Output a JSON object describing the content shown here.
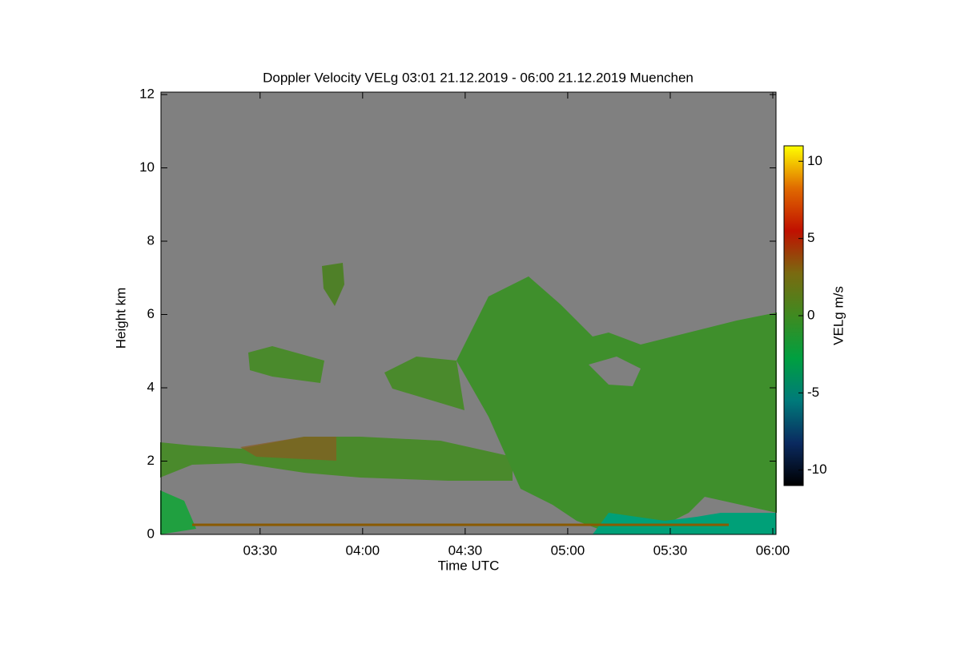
{
  "chart_data": {
    "type": "heatmap",
    "title": "Doppler Velocity VELg   03:01 21.12.2019 - 06:00 21.12.2019 Muenchen",
    "xlabel": "Time UTC",
    "ylabel": "Height km",
    "xlim": [
      3.0167,
      6
    ],
    "xticks": [
      {
        "value": 3.5,
        "label": "03:30"
      },
      {
        "value": 4,
        "label": "04:00"
      },
      {
        "value": 4.5,
        "label": "04:30"
      },
      {
        "value": 5,
        "label": "05:00"
      },
      {
        "value": 5.5,
        "label": "05:30"
      },
      {
        "value": 6,
        "label": "06:00"
      }
    ],
    "ylim": [
      0,
      12
    ],
    "yticks": [
      0,
      2,
      4,
      6,
      8,
      10,
      12
    ],
    "colorbar": {
      "label": "VELg m/s",
      "lim": [
        -11,
        11
      ],
      "ticks": [
        -10,
        -5,
        0,
        5,
        10
      ],
      "colormap": [
        "#000000",
        "#0a2a60",
        "#007a7a",
        "#00a040",
        "#3f8a20",
        "#7a6a10",
        "#c01000",
        "#e06a00",
        "#ffff00"
      ]
    },
    "background": "#808080"
  }
}
